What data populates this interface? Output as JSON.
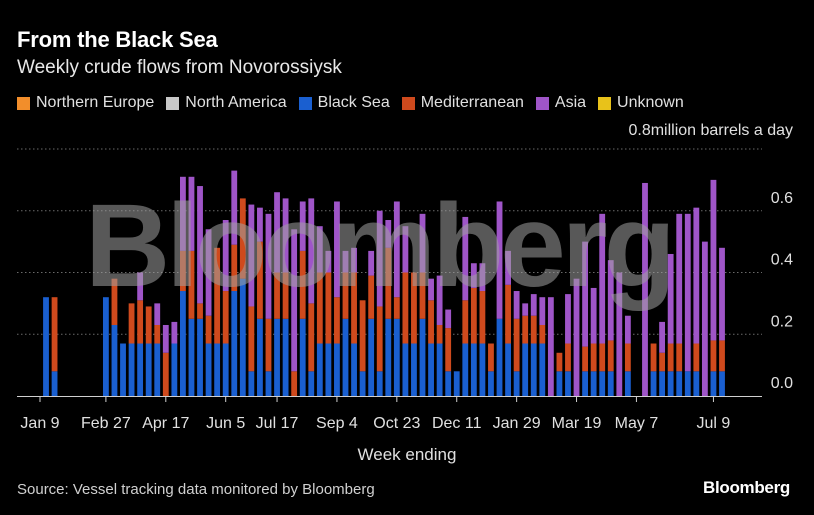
{
  "header": {
    "title": "From the Black Sea",
    "subtitle": "Weekly crude flows from Novorossiysk"
  },
  "legend": [
    {
      "name": "Northern Europe",
      "color": "#f28e2b"
    },
    {
      "name": "North America",
      "color": "#c8c8c8"
    },
    {
      "name": "Black Sea",
      "color": "#1a5fd0"
    },
    {
      "name": "Mediterranean",
      "color": "#cf4a1d"
    },
    {
      "name": "Asia",
      "color": "#9f55c8"
    },
    {
      "name": "Unknown",
      "color": "#e8c21a"
    }
  ],
  "footer": {
    "source": "Source: Vessel tracking data monitored by Bloomberg",
    "brand": "Bloomberg"
  },
  "watermark": "Bloomberg",
  "chart_data": {
    "type": "bar",
    "stacked": true,
    "unit_label": "million barrels a day",
    "xlabel": "Week ending",
    "ylim": [
      0,
      0.8
    ],
    "y_ticks": [
      0.0,
      0.2,
      0.4,
      0.6,
      0.8
    ],
    "x_tick_labels": [
      {
        "label": "Jan 9",
        "index": 1
      },
      {
        "label": "Feb 27",
        "index": 8
      },
      {
        "label": "Apr 17",
        "index": 15
      },
      {
        "label": "Jun 5",
        "index": 22
      },
      {
        "label": "Jul 17",
        "index": 28
      },
      {
        "label": "Sep 4",
        "index": 35
      },
      {
        "label": "Oct 23",
        "index": 42
      },
      {
        "label": "Dec 11",
        "index": 49
      },
      {
        "label": "Jan 29",
        "index": 56
      },
      {
        "label": "Mar 19",
        "index": 63
      },
      {
        "label": "May 7",
        "index": 70
      },
      {
        "label": "Jul 9",
        "index": 79
      }
    ],
    "grid": true,
    "legend_position": "top",
    "series": [
      {
        "name": "Black Sea",
        "values": [
          0.32,
          0.08,
          0,
          0,
          0,
          0,
          0,
          0.32,
          0.23,
          0.17,
          0.17,
          0.17,
          0.17,
          0.17,
          0,
          0.17,
          0.34,
          0.25,
          0.25,
          0.17,
          0.17,
          0.17,
          0.34,
          0.38,
          0.08,
          0.25,
          0.08,
          0.25,
          0.25,
          0,
          0.25,
          0.08,
          0.17,
          0.17,
          0.17,
          0.25,
          0.17,
          0.08,
          0.25,
          0.08,
          0.25,
          0.25,
          0.17,
          0.17,
          0.25,
          0.17,
          0.17,
          0.08,
          0.08,
          0.17,
          0.17,
          0.17,
          0.08,
          0.25,
          0.17,
          0.08,
          0.17,
          0.17,
          0.17,
          0,
          0.08,
          0.08,
          0,
          0.08,
          0.08,
          0.08,
          0.08,
          0,
          0.08,
          0,
          0,
          0.08,
          0.08,
          0.08,
          0.08,
          0.08,
          0.08,
          0,
          0.08,
          0.08
        ]
      },
      {
        "name": "Mediterranean",
        "values": [
          0,
          0.24,
          0,
          0,
          0,
          0,
          0,
          0,
          0.15,
          0,
          0.13,
          0.14,
          0.12,
          0.06,
          0.14,
          0,
          0.13,
          0.22,
          0.05,
          0.09,
          0.31,
          0.17,
          0.15,
          0.26,
          0.21,
          0.25,
          0.17,
          0.15,
          0.15,
          0.08,
          0.22,
          0.22,
          0.23,
          0.23,
          0.15,
          0.15,
          0.23,
          0.23,
          0.14,
          0.21,
          0.23,
          0.07,
          0.23,
          0.23,
          0.15,
          0.14,
          0.06,
          0.14,
          0,
          0.14,
          0.18,
          0.17,
          0.09,
          0,
          0.19,
          0.17,
          0.09,
          0.09,
          0.06,
          0,
          0.06,
          0.09,
          0,
          0.08,
          0.09,
          0.09,
          0.1,
          0,
          0.09,
          0,
          0,
          0.09,
          0.06,
          0.09,
          0.09,
          0,
          0.09,
          0,
          0.1,
          0.1
        ]
      },
      {
        "name": "Asia",
        "values": [
          0,
          0,
          0,
          0,
          0,
          0,
          0,
          0,
          0,
          0,
          0,
          0.09,
          0,
          0.07,
          0.09,
          0.07,
          0.24,
          0.24,
          0.38,
          0.28,
          0,
          0.23,
          0.24,
          0,
          0.33,
          0.11,
          0.34,
          0.26,
          0.24,
          0.46,
          0.16,
          0.34,
          0.15,
          0.07,
          0.31,
          0.07,
          0.08,
          0,
          0.08,
          0.31,
          0.09,
          0.31,
          0.15,
          0,
          0.19,
          0.07,
          0.16,
          0.06,
          0,
          0.27,
          0.08,
          0.09,
          0,
          0.38,
          0.11,
          0.09,
          0.04,
          0.07,
          0.09,
          0.32,
          0,
          0.16,
          0.38,
          0.34,
          0.18,
          0.42,
          0.26,
          0.4,
          0.09,
          0,
          0.69,
          0,
          0.1,
          0.29,
          0.42,
          0.51,
          0.44,
          0.5,
          0.52,
          0.3
        ]
      },
      {
        "name": "Northern Europe",
        "values": [
          0,
          0,
          0,
          0,
          0,
          0,
          0,
          0,
          0,
          0,
          0,
          0,
          0,
          0,
          0,
          0,
          0,
          0,
          0,
          0,
          0,
          0,
          0,
          0,
          0,
          0,
          0,
          0,
          0,
          0,
          0,
          0,
          0,
          0,
          0,
          0,
          0,
          0,
          0,
          0,
          0,
          0,
          0,
          0,
          0,
          0,
          0,
          0,
          0,
          0,
          0,
          0,
          0,
          0,
          0,
          0,
          0,
          0,
          0,
          0,
          0,
          0,
          0,
          0,
          0,
          0,
          0,
          0,
          0,
          0,
          0,
          0,
          0,
          0,
          0,
          0,
          0,
          0,
          0,
          0
        ]
      },
      {
        "name": "North America",
        "values": [
          0,
          0,
          0,
          0,
          0,
          0,
          0,
          0,
          0,
          0,
          0,
          0,
          0,
          0,
          0,
          0,
          0,
          0,
          0,
          0,
          0,
          0,
          0,
          0,
          0,
          0,
          0,
          0,
          0,
          0,
          0,
          0,
          0,
          0,
          0,
          0,
          0,
          0,
          0,
          0,
          0,
          0,
          0,
          0,
          0,
          0,
          0,
          0,
          0,
          0,
          0,
          0,
          0,
          0,
          0,
          0,
          0,
          0,
          0,
          0,
          0,
          0,
          0,
          0,
          0,
          0,
          0,
          0,
          0,
          0,
          0,
          0,
          0,
          0,
          0,
          0,
          0,
          0,
          0,
          0
        ]
      },
      {
        "name": "Unknown",
        "values": [
          0,
          0,
          0,
          0,
          0,
          0,
          0,
          0,
          0,
          0,
          0,
          0,
          0,
          0,
          0,
          0,
          0,
          0,
          0,
          0,
          0,
          0,
          0,
          0,
          0,
          0,
          0,
          0,
          0,
          0,
          0,
          0,
          0,
          0,
          0,
          0,
          0,
          0,
          0,
          0,
          0,
          0,
          0,
          0,
          0,
          0,
          0,
          0,
          0,
          0,
          0,
          0,
          0,
          0,
          0,
          0,
          0,
          0,
          0,
          0,
          0,
          0,
          0,
          0,
          0,
          0,
          0,
          0,
          0,
          0,
          0,
          0,
          0,
          0,
          0,
          0,
          0,
          0,
          0,
          0
        ]
      }
    ]
  }
}
